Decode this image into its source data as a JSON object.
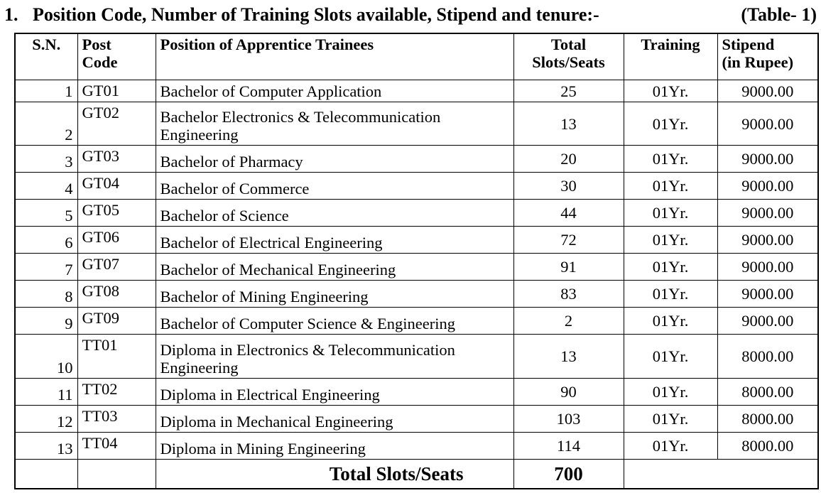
{
  "title": {
    "number": "1.",
    "text": "Position Code, Number of Training Slots available, Stipend and tenure:-",
    "table_tag": "(Table- 1)"
  },
  "headers": {
    "sn": "S.N.",
    "post_code": [
      "Post",
      "Code"
    ],
    "position": "Position of Apprentice Trainees",
    "slots": [
      "Total",
      "Slots/Seats"
    ],
    "training": "Training",
    "stipend": [
      "Stipend",
      "(in Rupee)"
    ]
  },
  "rows": [
    {
      "sn": "1",
      "code": "GT01",
      "position": "Bachelor of Computer Application",
      "slots": "25",
      "training": "01Yr.",
      "stipend": "9000.00"
    },
    {
      "sn": "2",
      "code": "GT02",
      "position": "Bachelor Electronics & Telecommunication Engineering",
      "slots": "13",
      "training": "01Yr.",
      "stipend": "9000.00"
    },
    {
      "sn": "3",
      "code": "GT03",
      "position": "Bachelor of Pharmacy",
      "slots": "20",
      "training": "01Yr.",
      "stipend": "9000.00"
    },
    {
      "sn": "4",
      "code": "GT04",
      "position": "Bachelor of Commerce",
      "slots": "30",
      "training": "01Yr.",
      "stipend": "9000.00"
    },
    {
      "sn": "5",
      "code": "GT05",
      "position": "Bachelor of Science",
      "slots": "44",
      "training": "01Yr.",
      "stipend": "9000.00"
    },
    {
      "sn": "6",
      "code": "GT06",
      "position": "Bachelor of Electrical Engineering",
      "slots": "72",
      "training": "01Yr.",
      "stipend": "9000.00"
    },
    {
      "sn": "7",
      "code": "GT07",
      "position": "Bachelor of Mechanical Engineering",
      "slots": "91",
      "training": "01Yr.",
      "stipend": "9000.00"
    },
    {
      "sn": "8",
      "code": "GT08",
      "position": "Bachelor of Mining Engineering",
      "slots": "83",
      "training": "01Yr.",
      "stipend": "9000.00"
    },
    {
      "sn": "9",
      "code": "GT09",
      "position": "Bachelor of Computer Science & Engineering",
      "slots": "2",
      "training": "01Yr.",
      "stipend": "9000.00"
    },
    {
      "sn": "10",
      "code": "TT01",
      "position": "Diploma in Electronics & Telecommunication Engineering",
      "slots": "13",
      "training": "01Yr.",
      "stipend": "8000.00"
    },
    {
      "sn": "11",
      "code": "TT02",
      "position": "Diploma in Electrical Engineering",
      "slots": "90",
      "training": "01Yr.",
      "stipend": "8000.00"
    },
    {
      "sn": "12",
      "code": "TT03",
      "position": "Diploma in Mechanical Engineering",
      "slots": "103",
      "training": "01Yr.",
      "stipend": "8000.00"
    },
    {
      "sn": "13",
      "code": "TT04",
      "position": "Diploma in Mining Engineering",
      "slots": "114",
      "training": "01Yr.",
      "stipend": "8000.00"
    }
  ],
  "total": {
    "label": "Total Slots/Seats",
    "value": "700"
  }
}
